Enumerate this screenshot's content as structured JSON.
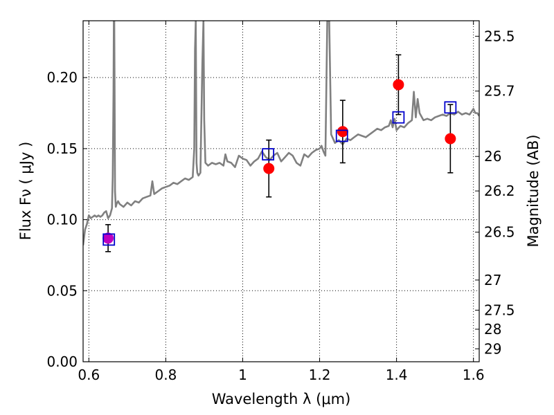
{
  "chart_data": {
    "type": "scatter",
    "title": "",
    "xlabel": "Wavelength  λ (μm)",
    "ylabel": "Flux  Fν  ( μJy )",
    "y2label": "Magnitude (AB)",
    "xlim": [
      0.585,
      1.615
    ],
    "ylim": [
      0.0,
      0.24
    ],
    "grid": true,
    "xticks": [
      0.6,
      0.8,
      1.0,
      1.2,
      1.4,
      1.6
    ],
    "xtick_labels": [
      "0.6",
      "0.8",
      "1",
      "1.2",
      "1.4",
      "1.6"
    ],
    "yticks": [
      0.0,
      0.05,
      0.1,
      0.15,
      0.2
    ],
    "ytick_labels": [
      "0.00",
      "0.05",
      "0.10",
      "0.15",
      "0.20"
    ],
    "y2ticks": [
      {
        "label": "25.5",
        "flux": 0.2291
      },
      {
        "label": "25.7",
        "flux": 0.1905
      },
      {
        "label": "26",
        "flux": 0.1445
      },
      {
        "label": "26.2",
        "flux": 0.1202
      },
      {
        "label": "26.5",
        "flux": 0.0912
      },
      {
        "label": "27",
        "flux": 0.0575
      },
      {
        "label": "27.5",
        "flux": 0.0363
      },
      {
        "label": "28",
        "flux": 0.0229
      },
      {
        "label": "29",
        "flux": 0.0091
      }
    ],
    "series": [
      {
        "kind": "line",
        "color": "#808080",
        "x": [
          0.585,
          0.59,
          0.595,
          0.6,
          0.605,
          0.61,
          0.615,
          0.62,
          0.625,
          0.63,
          0.635,
          0.64,
          0.645,
          0.65,
          0.655,
          0.66,
          0.662,
          0.664,
          0.665,
          0.666,
          0.667,
          0.668,
          0.67,
          0.672,
          0.674,
          0.676,
          0.68,
          0.69,
          0.7,
          0.71,
          0.72,
          0.73,
          0.74,
          0.75,
          0.76,
          0.765,
          0.77,
          0.78,
          0.79,
          0.8,
          0.81,
          0.82,
          0.83,
          0.84,
          0.85,
          0.86,
          0.87,
          0.874,
          0.876,
          0.878,
          0.88,
          0.882,
          0.885,
          0.89,
          0.895,
          0.898,
          0.9,
          0.903,
          0.91,
          0.92,
          0.93,
          0.94,
          0.95,
          0.955,
          0.96,
          0.97,
          0.98,
          0.99,
          1.0,
          1.01,
          1.02,
          1.03,
          1.04,
          1.05,
          1.06,
          1.07,
          1.08,
          1.09,
          1.1,
          1.11,
          1.12,
          1.13,
          1.14,
          1.15,
          1.16,
          1.17,
          1.18,
          1.19,
          1.2,
          1.205,
          1.21,
          1.215,
          1.22,
          1.225,
          1.23,
          1.24,
          1.25,
          1.26,
          1.27,
          1.28,
          1.29,
          1.3,
          1.31,
          1.32,
          1.33,
          1.34,
          1.35,
          1.36,
          1.37,
          1.38,
          1.385,
          1.39,
          1.395,
          1.4,
          1.41,
          1.42,
          1.43,
          1.44,
          1.445,
          1.45,
          1.455,
          1.46,
          1.47,
          1.48,
          1.49,
          1.5,
          1.51,
          1.52,
          1.53,
          1.54,
          1.55,
          1.56,
          1.57,
          1.58,
          1.59,
          1.6,
          1.605,
          1.61,
          1.615
        ],
        "y": [
          0.082,
          0.093,
          0.097,
          0.103,
          0.101,
          0.102,
          0.103,
          0.102,
          0.103,
          0.102,
          0.103,
          0.105,
          0.106,
          0.101,
          0.103,
          0.108,
          0.13,
          0.19,
          0.24,
          0.24,
          0.19,
          0.12,
          0.109,
          0.111,
          0.112,
          0.113,
          0.111,
          0.109,
          0.112,
          0.11,
          0.113,
          0.112,
          0.115,
          0.116,
          0.117,
          0.127,
          0.118,
          0.12,
          0.122,
          0.123,
          0.124,
          0.126,
          0.125,
          0.127,
          0.129,
          0.128,
          0.13,
          0.15,
          0.22,
          0.24,
          0.14,
          0.133,
          0.131,
          0.133,
          0.21,
          0.24,
          0.17,
          0.14,
          0.138,
          0.14,
          0.139,
          0.14,
          0.138,
          0.146,
          0.141,
          0.14,
          0.137,
          0.145,
          0.143,
          0.142,
          0.138,
          0.141,
          0.143,
          0.148,
          0.144,
          0.142,
          0.145,
          0.147,
          0.141,
          0.144,
          0.147,
          0.145,
          0.14,
          0.138,
          0.146,
          0.144,
          0.147,
          0.149,
          0.15,
          0.152,
          0.148,
          0.145,
          0.24,
          0.24,
          0.16,
          0.154,
          0.156,
          0.153,
          0.157,
          0.156,
          0.158,
          0.16,
          0.159,
          0.158,
          0.16,
          0.162,
          0.164,
          0.163,
          0.165,
          0.166,
          0.17,
          0.165,
          0.171,
          0.163,
          0.166,
          0.165,
          0.168,
          0.17,
          0.19,
          0.172,
          0.185,
          0.175,
          0.17,
          0.171,
          0.17,
          0.172,
          0.173,
          0.174,
          0.173,
          0.175,
          0.174,
          0.176,
          0.174,
          0.175,
          0.174,
          0.178,
          0.175,
          0.175,
          0.173
        ]
      },
      {
        "kind": "points",
        "marker": "circle",
        "color": "#ff0000",
        "x": [
          1.068,
          1.26,
          1.405,
          1.54
        ],
        "y": [
          0.136,
          0.162,
          0.195,
          0.157
        ],
        "yerr": [
          0.02,
          0.022,
          0.021,
          0.024
        ]
      },
      {
        "kind": "points",
        "marker": "circle",
        "color": "#bf00bf",
        "x": [
          0.65
        ],
        "y": [
          0.087
        ],
        "yerr": [
          0.0095
        ]
      },
      {
        "kind": "points",
        "marker": "square",
        "color": "#0000cc",
        "x": [
          0.652,
          1.066,
          1.258,
          1.405,
          1.54
        ],
        "y": [
          0.086,
          0.146,
          0.159,
          0.172,
          0.179
        ]
      }
    ]
  }
}
